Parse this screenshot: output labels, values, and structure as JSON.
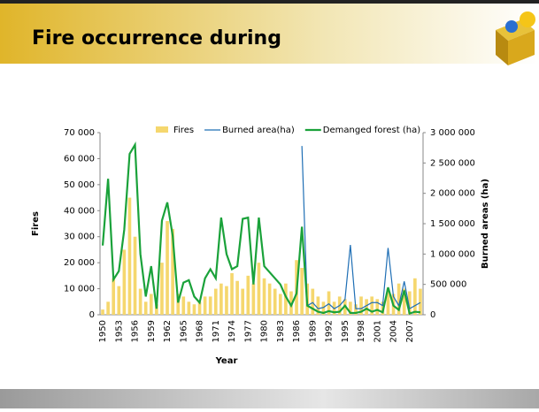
{
  "chart_data": {
    "type": "bar",
    "title": "Fire occurrence during",
    "x_label": "Year",
    "y_label": "Fires",
    "y2_label": "Burned areas (ha)",
    "categories": [
      "1950",
      null,
      null,
      "1953",
      null,
      null,
      "1956",
      null,
      null,
      "1959",
      null,
      null,
      "1962",
      null,
      null,
      "1965",
      null,
      null,
      "1968",
      null,
      null,
      "1971",
      null,
      null,
      "1974",
      null,
      null,
      "1977",
      null,
      null,
      "1980",
      null,
      null,
      "1983",
      null,
      null,
      "1986",
      null,
      null,
      "1989",
      null,
      null,
      "1992",
      null,
      null,
      "1995",
      null,
      null,
      "1998",
      null,
      null,
      "2001",
      null,
      null,
      "2004",
      null,
      null,
      "2007",
      null,
      null
    ],
    "series": [
      {
        "name": "Fires",
        "type": "bar",
        "axis": "y",
        "color": "#f5d76e",
        "values": [
          2000,
          5000,
          14000,
          11000,
          25000,
          45000,
          30000,
          10000,
          5000,
          8000,
          4000,
          20000,
          36000,
          33000,
          8000,
          7000,
          5000,
          4000,
          5000,
          7000,
          7000,
          10000,
          12000,
          11000,
          16000,
          13000,
          10000,
          15000,
          12000,
          20000,
          14000,
          12000,
          10000,
          8000,
          12000,
          9000,
          21000,
          18000,
          12000,
          10000,
          7000,
          5000,
          9000,
          5000,
          7000,
          6000,
          5000,
          4000,
          7000,
          6000,
          7000,
          6000,
          5000,
          10000,
          8000,
          12000,
          10000,
          9000,
          14000,
          10000
        ]
      },
      {
        "name": "Burned area(ha)",
        "type": "line",
        "axis": "y2",
        "color": "#1f6fb5",
        "values": [
          null,
          null,
          null,
          null,
          null,
          null,
          null,
          null,
          null,
          null,
          null,
          null,
          null,
          null,
          null,
          null,
          null,
          null,
          null,
          null,
          null,
          null,
          null,
          null,
          null,
          null,
          null,
          null,
          null,
          null,
          null,
          null,
          null,
          null,
          null,
          null,
          null,
          2780000,
          150000,
          200000,
          100000,
          120000,
          180000,
          100000,
          150000,
          250000,
          1150000,
          100000,
          100000,
          150000,
          200000,
          200000,
          150000,
          1100000,
          300000,
          150000,
          550000,
          100000,
          150000,
          200000
        ]
      },
      {
        "name": "Demanged forest (ha)",
        "type": "line",
        "axis": "y2",
        "color": "#1aa23a",
        "values": [
          1140000,
          2240000,
          580000,
          720000,
          1400000,
          2650000,
          2800000,
          1000000,
          300000,
          800000,
          100000,
          1550000,
          1850000,
          1300000,
          200000,
          530000,
          570000,
          300000,
          200000,
          600000,
          750000,
          600000,
          1600000,
          1000000,
          750000,
          800000,
          1580000,
          1600000,
          500000,
          1600000,
          800000,
          700000,
          600000,
          500000,
          300000,
          150000,
          350000,
          1450000,
          150000,
          100000,
          50000,
          30000,
          60000,
          40000,
          50000,
          150000,
          30000,
          30000,
          50000,
          100000,
          50000,
          80000,
          40000,
          450000,
          150000,
          80000,
          400000,
          20000,
          50000,
          40000
        ]
      }
    ],
    "ylim": [
      0,
      70000
    ],
    "yticks": [
      0,
      {
        "value": 10000,
        "label": "10 000"
      },
      {
        "value": 20000,
        "label": "20 000"
      },
      {
        "value": 30000,
        "label": "30 000"
      },
      {
        "value": 40000,
        "label": "40 000"
      },
      {
        "value": 50000,
        "label": "50 000"
      },
      {
        "value": 60000,
        "label": "60 000"
      },
      {
        "value": 70000,
        "label": "70 000"
      }
    ],
    "y2lim": [
      0,
      3000000
    ],
    "y2ticks": [
      0,
      {
        "value": 500000,
        "label": "500 000"
      },
      {
        "value": 1000000,
        "label": "1 000 000"
      },
      {
        "value": 1500000,
        "label": "1 500 000"
      },
      {
        "value": 2000000,
        "label": "2 000 000"
      },
      {
        "value": 2500000,
        "label": "2 500 000"
      },
      {
        "value": 3000000,
        "label": "3 000 000"
      }
    ]
  }
}
